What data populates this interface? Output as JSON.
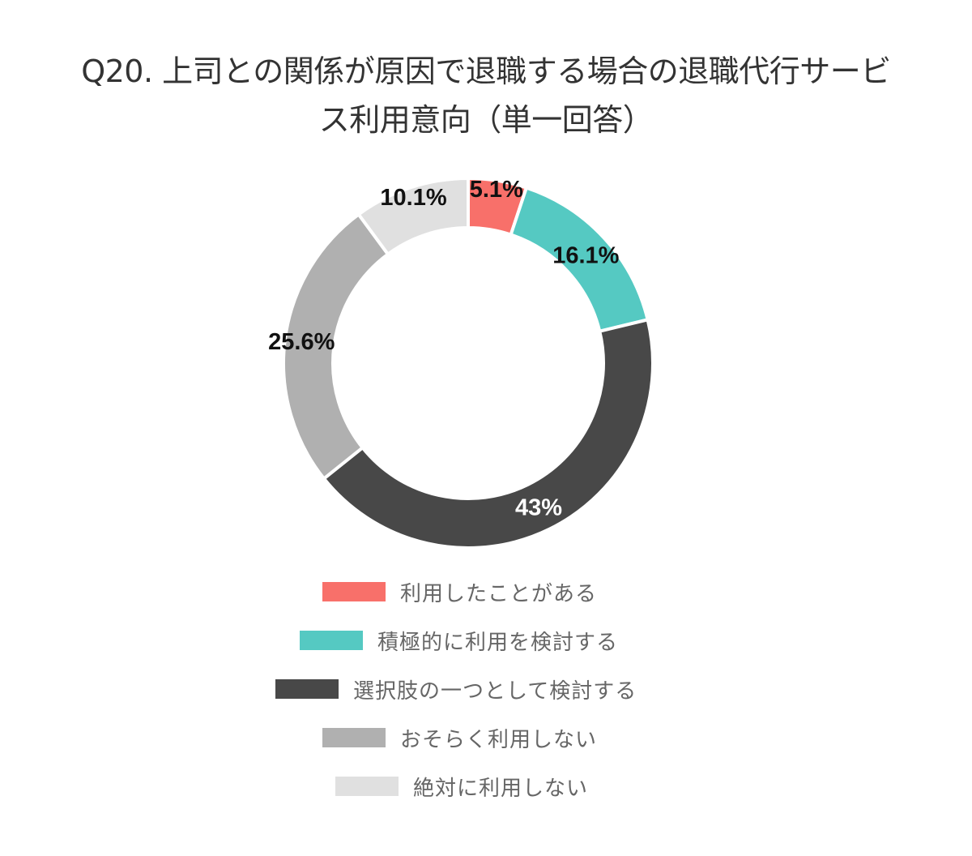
{
  "title": {
    "line1": "Q20. 上司との関係が原因で退職する場合の退職代行サービ",
    "line2": "ス利用意向（単一回答）"
  },
  "chart_data": {
    "type": "pie",
    "variant": "donut",
    "title": "Q20. 上司との関係が原因で退職する場合の退職代行サービス利用意向（単一回答）",
    "categories": [
      "利用したことがある",
      "積極的に利用を検討する",
      "選択肢の一つとして検討する",
      "おそらく利用しない",
      "絶対に利用しない"
    ],
    "values": [
      5.1,
      16.1,
      43,
      25.6,
      10.1
    ],
    "labels": [
      "5.1%",
      "16.1%",
      "43%",
      "25.6%",
      "10.1%"
    ],
    "colors": [
      "#F8706A",
      "#55C9C2",
      "#484848",
      "#B0B0B0",
      "#E0E0E0"
    ],
    "label_colors": [
      "#111111",
      "#111111",
      "#FFFFFF",
      "#111111",
      "#111111"
    ],
    "legend_position": "bottom",
    "start_angle": "12 o'clock, clockwise"
  },
  "legend": {
    "items": [
      {
        "label": "利用したことがある",
        "color": "#F8706A"
      },
      {
        "label": "積極的に利用を検討する",
        "color": "#55C9C2"
      },
      {
        "label": "選択肢の一つとして検討する",
        "color": "#484848"
      },
      {
        "label": "おそらく利用しない",
        "color": "#B0B0B0"
      },
      {
        "label": "絶対に利用しない",
        "color": "#E0E0E0"
      }
    ]
  }
}
